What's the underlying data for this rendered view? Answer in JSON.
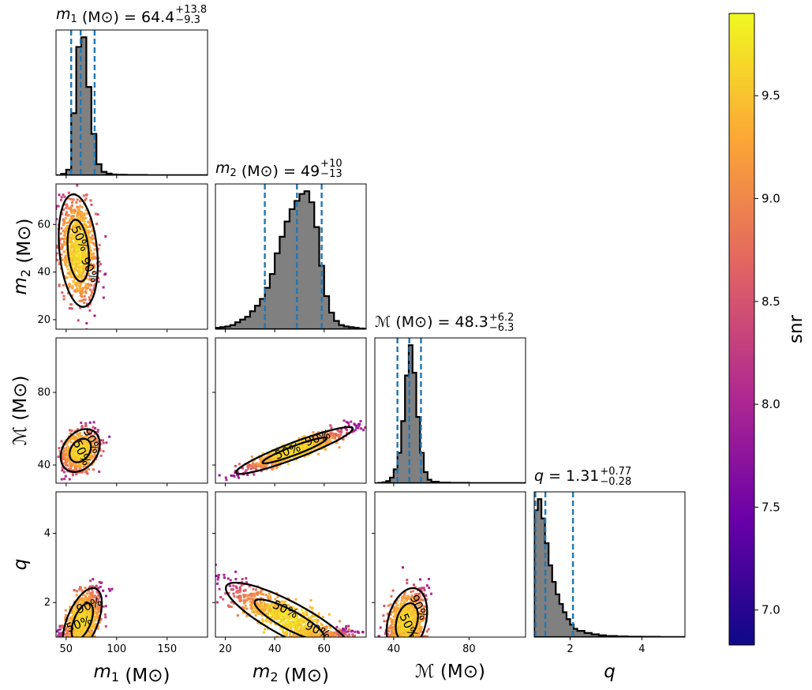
{
  "chart_data": {
    "type": "scatter",
    "parameters": [
      {
        "key": "m1",
        "symbol": "m",
        "subscript": "1",
        "unit": "(M⊙)",
        "median": "64.4",
        "plus": "+13.8",
        "minus": "−9.3",
        "range": [
          40,
          190
        ],
        "ticks": [
          50,
          100,
          150
        ],
        "interval": [
          55,
          64.4,
          78.2
        ]
      },
      {
        "key": "m2",
        "symbol": "m",
        "subscript": "2",
        "unit": "(M⊙)",
        "median": "49",
        "plus": "+10",
        "minus": "−13",
        "range": [
          16,
          77
        ],
        "ticks": [
          20,
          40,
          60
        ],
        "interval": [
          36,
          49,
          59
        ]
      },
      {
        "key": "mc",
        "symbol": "ℳ",
        "subscript": "",
        "unit": "(M⊙)",
        "median": "48.3",
        "plus": "+6.2",
        "minus": "−6.3",
        "range": [
          30,
          110
        ],
        "ticks": [
          40,
          80
        ],
        "interval": [
          42,
          48.3,
          54.5
        ]
      },
      {
        "key": "q",
        "symbol": "q",
        "subscript": "",
        "unit": "",
        "median": "1.31",
        "plus": "+0.77",
        "minus": "−0.28",
        "range": [
          1,
          5.2
        ],
        "ticks": [
          2,
          4
        ],
        "interval": [
          1.03,
          1.31,
          2.08
        ]
      }
    ],
    "colorbar": {
      "label": "snr",
      "range": [
        6.83,
        9.9
      ],
      "ticks": [
        "7.0",
        "7.5",
        "8.0",
        "8.5",
        "9.0",
        "9.5"
      ],
      "colormap": "plasma",
      "colors": [
        "#0d0887",
        "#6a00a8",
        "#b12a90",
        "#e16462",
        "#fca636",
        "#f0f921"
      ]
    },
    "contour_labels": [
      "90%",
      "50%"
    ],
    "hist_fill": "#808080",
    "interval_line_color": "#1f77b4",
    "histograms": {
      "m1": {
        "bins": [
          40,
          45,
          50,
          55,
          60,
          65,
          70,
          75,
          80,
          85,
          90,
          95,
          100,
          110,
          120,
          130,
          140,
          150,
          160,
          170,
          180,
          190
        ],
        "density": [
          0,
          0.01,
          0.04,
          0.45,
          0.93,
          1.0,
          0.64,
          0.3,
          0.08,
          0.025,
          0.012,
          0.006,
          0.004,
          0.002,
          0.002,
          0.001,
          0.001,
          0.001,
          0.001,
          0.001,
          0.001
        ]
      },
      "m2": {
        "bins": [
          16,
          18,
          20,
          22,
          24,
          26,
          28,
          30,
          32,
          34,
          36,
          38,
          40,
          42,
          44,
          46,
          48,
          50,
          52,
          54,
          56,
          58,
          60,
          62,
          64,
          66,
          68,
          70,
          72,
          74,
          76,
          77
        ],
        "density": [
          0.01,
          0.015,
          0.02,
          0.03,
          0.05,
          0.07,
          0.09,
          0.13,
          0.17,
          0.22,
          0.3,
          0.4,
          0.55,
          0.67,
          0.78,
          0.87,
          0.93,
          0.98,
          1.0,
          0.92,
          0.74,
          0.46,
          0.24,
          0.12,
          0.06,
          0.03,
          0.02,
          0.015,
          0.01,
          0.005,
          0.003
        ]
      },
      "mc": {
        "bins": [
          30,
          32,
          34,
          36,
          38,
          40,
          42,
          44,
          46,
          48,
          50,
          52,
          54,
          56,
          58,
          60,
          64,
          70,
          80,
          90,
          100,
          110
        ],
        "density": [
          0,
          0.002,
          0.006,
          0.015,
          0.04,
          0.1,
          0.22,
          0.45,
          0.78,
          1.0,
          0.8,
          0.48,
          0.22,
          0.08,
          0.025,
          0.01,
          0.004,
          0.002,
          0.001,
          0.001,
          0.001
        ]
      },
      "q": {
        "bins": [
          1.0,
          1.1,
          1.2,
          1.3,
          1.4,
          1.5,
          1.6,
          1.7,
          1.8,
          1.9,
          2.0,
          2.1,
          2.2,
          2.4,
          2.6,
          2.8,
          3.0,
          3.3,
          3.6,
          4.0,
          4.5,
          5.2
        ],
        "density": [
          0.92,
          1.0,
          0.86,
          0.68,
          0.52,
          0.4,
          0.31,
          0.24,
          0.18,
          0.13,
          0.09,
          0.06,
          0.045,
          0.03,
          0.02,
          0.013,
          0.008,
          0.005,
          0.003,
          0.002,
          0.001
        ]
      }
    },
    "scatter_clouds": {
      "m2_vs_m1": {
        "center": [
          62,
          49
        ],
        "spread": [
          9,
          11
        ],
        "corr": -0.25,
        "n": 900
      },
      "mc_vs_m1": {
        "center": [
          64,
          48
        ],
        "spread": [
          9,
          5.5
        ],
        "corr": 0.3,
        "n": 700
      },
      "mc_vs_m2": {
        "center": [
          48,
          48
        ],
        "spread": [
          11,
          6
        ],
        "corr": 0.93,
        "n": 900
      },
      "q_vs_m1": {
        "center": [
          66,
          1.45
        ],
        "spread": [
          9,
          0.45
        ],
        "corr": 0.55,
        "n": 900
      },
      "q_vs_m2": {
        "center": [
          46,
          1.5
        ],
        "spread": [
          12,
          0.5
        ],
        "corr": -0.85,
        "n": 900
      },
      "q_vs_mc": {
        "center": [
          47,
          1.45
        ],
        "spread": [
          5,
          0.45
        ],
        "corr": 0.3,
        "n": 800
      }
    }
  }
}
